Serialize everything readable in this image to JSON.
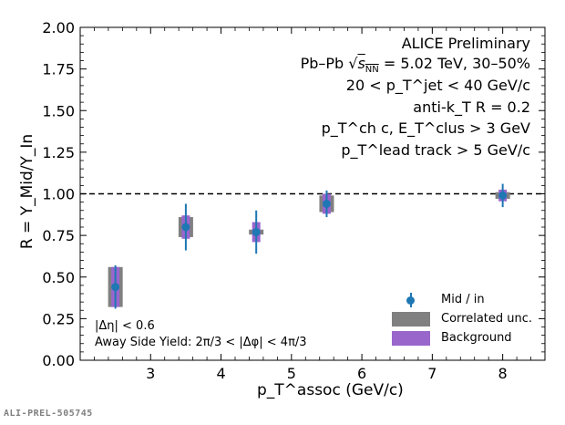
{
  "chart_data": {
    "type": "scatter",
    "title": "",
    "xlabel": "p_T^assoc (GeV/c)",
    "ylabel": "R = Y_Mid/Y_In",
    "xlim": [
      2.0,
      8.6
    ],
    "ylim": [
      0.0,
      2.0
    ],
    "xticks": [
      3,
      4,
      5,
      6,
      7,
      8
    ],
    "yticks": [
      "0.00",
      "0.25",
      "0.50",
      "0.75",
      "1.00",
      "1.25",
      "1.50",
      "1.75",
      "2.00"
    ],
    "reference_line": 1.0,
    "grid": false,
    "legend_position": "bottom-right",
    "series": [
      {
        "name": "Mid / in",
        "x": [
          2.5,
          3.5,
          4.5,
          5.5,
          8.0
        ],
        "y": [
          0.44,
          0.8,
          0.77,
          0.94,
          0.99
        ],
        "stat_err": [
          0.13,
          0.14,
          0.13,
          0.08,
          0.07
        ],
        "corr_unc": [
          0.12,
          0.06,
          0.015,
          0.05,
          0.02
        ],
        "bkg_unc": [
          0.12,
          0.07,
          0.06,
          0.06,
          0.035
        ]
      }
    ],
    "legend": [
      "Mid / in",
      "Correlated unc.",
      "Background"
    ],
    "colors": {
      "point": "#1f77b4",
      "correlated": "#808080",
      "background": "#9966cc"
    }
  },
  "annotations": {
    "experiment": "ALICE Preliminary",
    "system": "Pb–Pb",
    "energy": "= 5.02 TeV, 30–50%",
    "jet_pt": "20 < p_T^jet < 40 GeV/c",
    "algo": "anti-k_T R = 0.2",
    "constituents": "p_T^ch c, E_T^clus > 3 GeV",
    "lead_track": "p_T^lead track > 5 GeV/c",
    "deta_cut": "|Δη| < 0.6",
    "away_side": "Away Side Yield: 2π/3 < |Δφ| < 4π/3"
  },
  "footer": "ALI-PREL-505745"
}
